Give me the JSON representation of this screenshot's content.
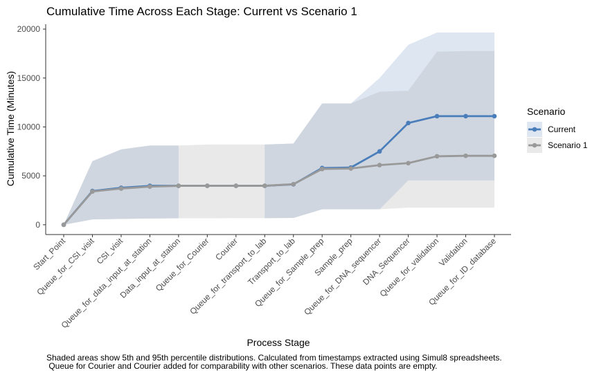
{
  "chart_data": {
    "type": "line",
    "title": "Cumulative Time Across Each Stage: Current vs Scenario 1",
    "xlabel": "Process Stage",
    "ylabel": "Cumulative Time (Minutes)",
    "ylim": [
      -1000,
      20500
    ],
    "yticks": [
      0,
      5000,
      10000,
      15000,
      20000
    ],
    "categories": [
      "Start_Point",
      "Queue_for_CSI_visit",
      "CSI_visit",
      "Queue_for_data_input_at_station",
      "Data_input_at_station",
      "Queue_for_Courier",
      "Courier",
      "Queue_for_transport_to_lab",
      "Transport_to_lab",
      "Queue_for_Sample_prep",
      "Sample_prep",
      "Queue_for_DNA_sequencer",
      "DNA_Sequencer",
      "Queue_for_validation",
      "Validation",
      "Queue_for_ID_database"
    ],
    "series": [
      {
        "name": "Current",
        "color": "#4a7ebb",
        "values": [
          0,
          3450,
          3780,
          3980,
          3980,
          3980,
          3980,
          3980,
          4130,
          5800,
          5850,
          7500,
          10400,
          11100,
          11100,
          11100
        ],
        "band_low": [
          0,
          550,
          600,
          640,
          660,
          null,
          null,
          680,
          700,
          1580,
          1580,
          1580,
          4530,
          4530,
          4530,
          4530
        ],
        "band_high": [
          0,
          6500,
          7700,
          8100,
          8100,
          null,
          null,
          8200,
          8300,
          12400,
          12400,
          15000,
          18400,
          19650,
          19650,
          19650
        ]
      },
      {
        "name": "Scenario 1",
        "color": "#999999",
        "values": [
          0,
          3400,
          3700,
          3900,
          3980,
          3980,
          3980,
          3980,
          4150,
          5700,
          5750,
          6100,
          6300,
          7000,
          7050,
          7050
        ],
        "band_low": [
          0,
          550,
          600,
          640,
          660,
          660,
          680,
          680,
          700,
          1580,
          1580,
          1580,
          1750,
          1750,
          1750,
          1750
        ],
        "band_high": [
          0,
          6500,
          7700,
          8100,
          8100,
          8200,
          8200,
          8200,
          8300,
          12400,
          12400,
          13600,
          13700,
          17700,
          17750,
          17750
        ]
      }
    ],
    "band_colors": {
      "Current": "#dde6f1",
      "Scenario 1": "#e9e9e9",
      "overlap": "#cfd6df"
    },
    "grid": false,
    "legend": {
      "title": "Scenario",
      "position": "right",
      "items": [
        "Current",
        "Scenario 1"
      ]
    },
    "caption": [
      "Shaded areas show 5th and 95th percentile distributions. Calculated from timestamps extracted using Simul8 spreadsheets.",
      " Queue for Courier and Courier added for comparability with other scenarios. These data points are empty."
    ]
  }
}
